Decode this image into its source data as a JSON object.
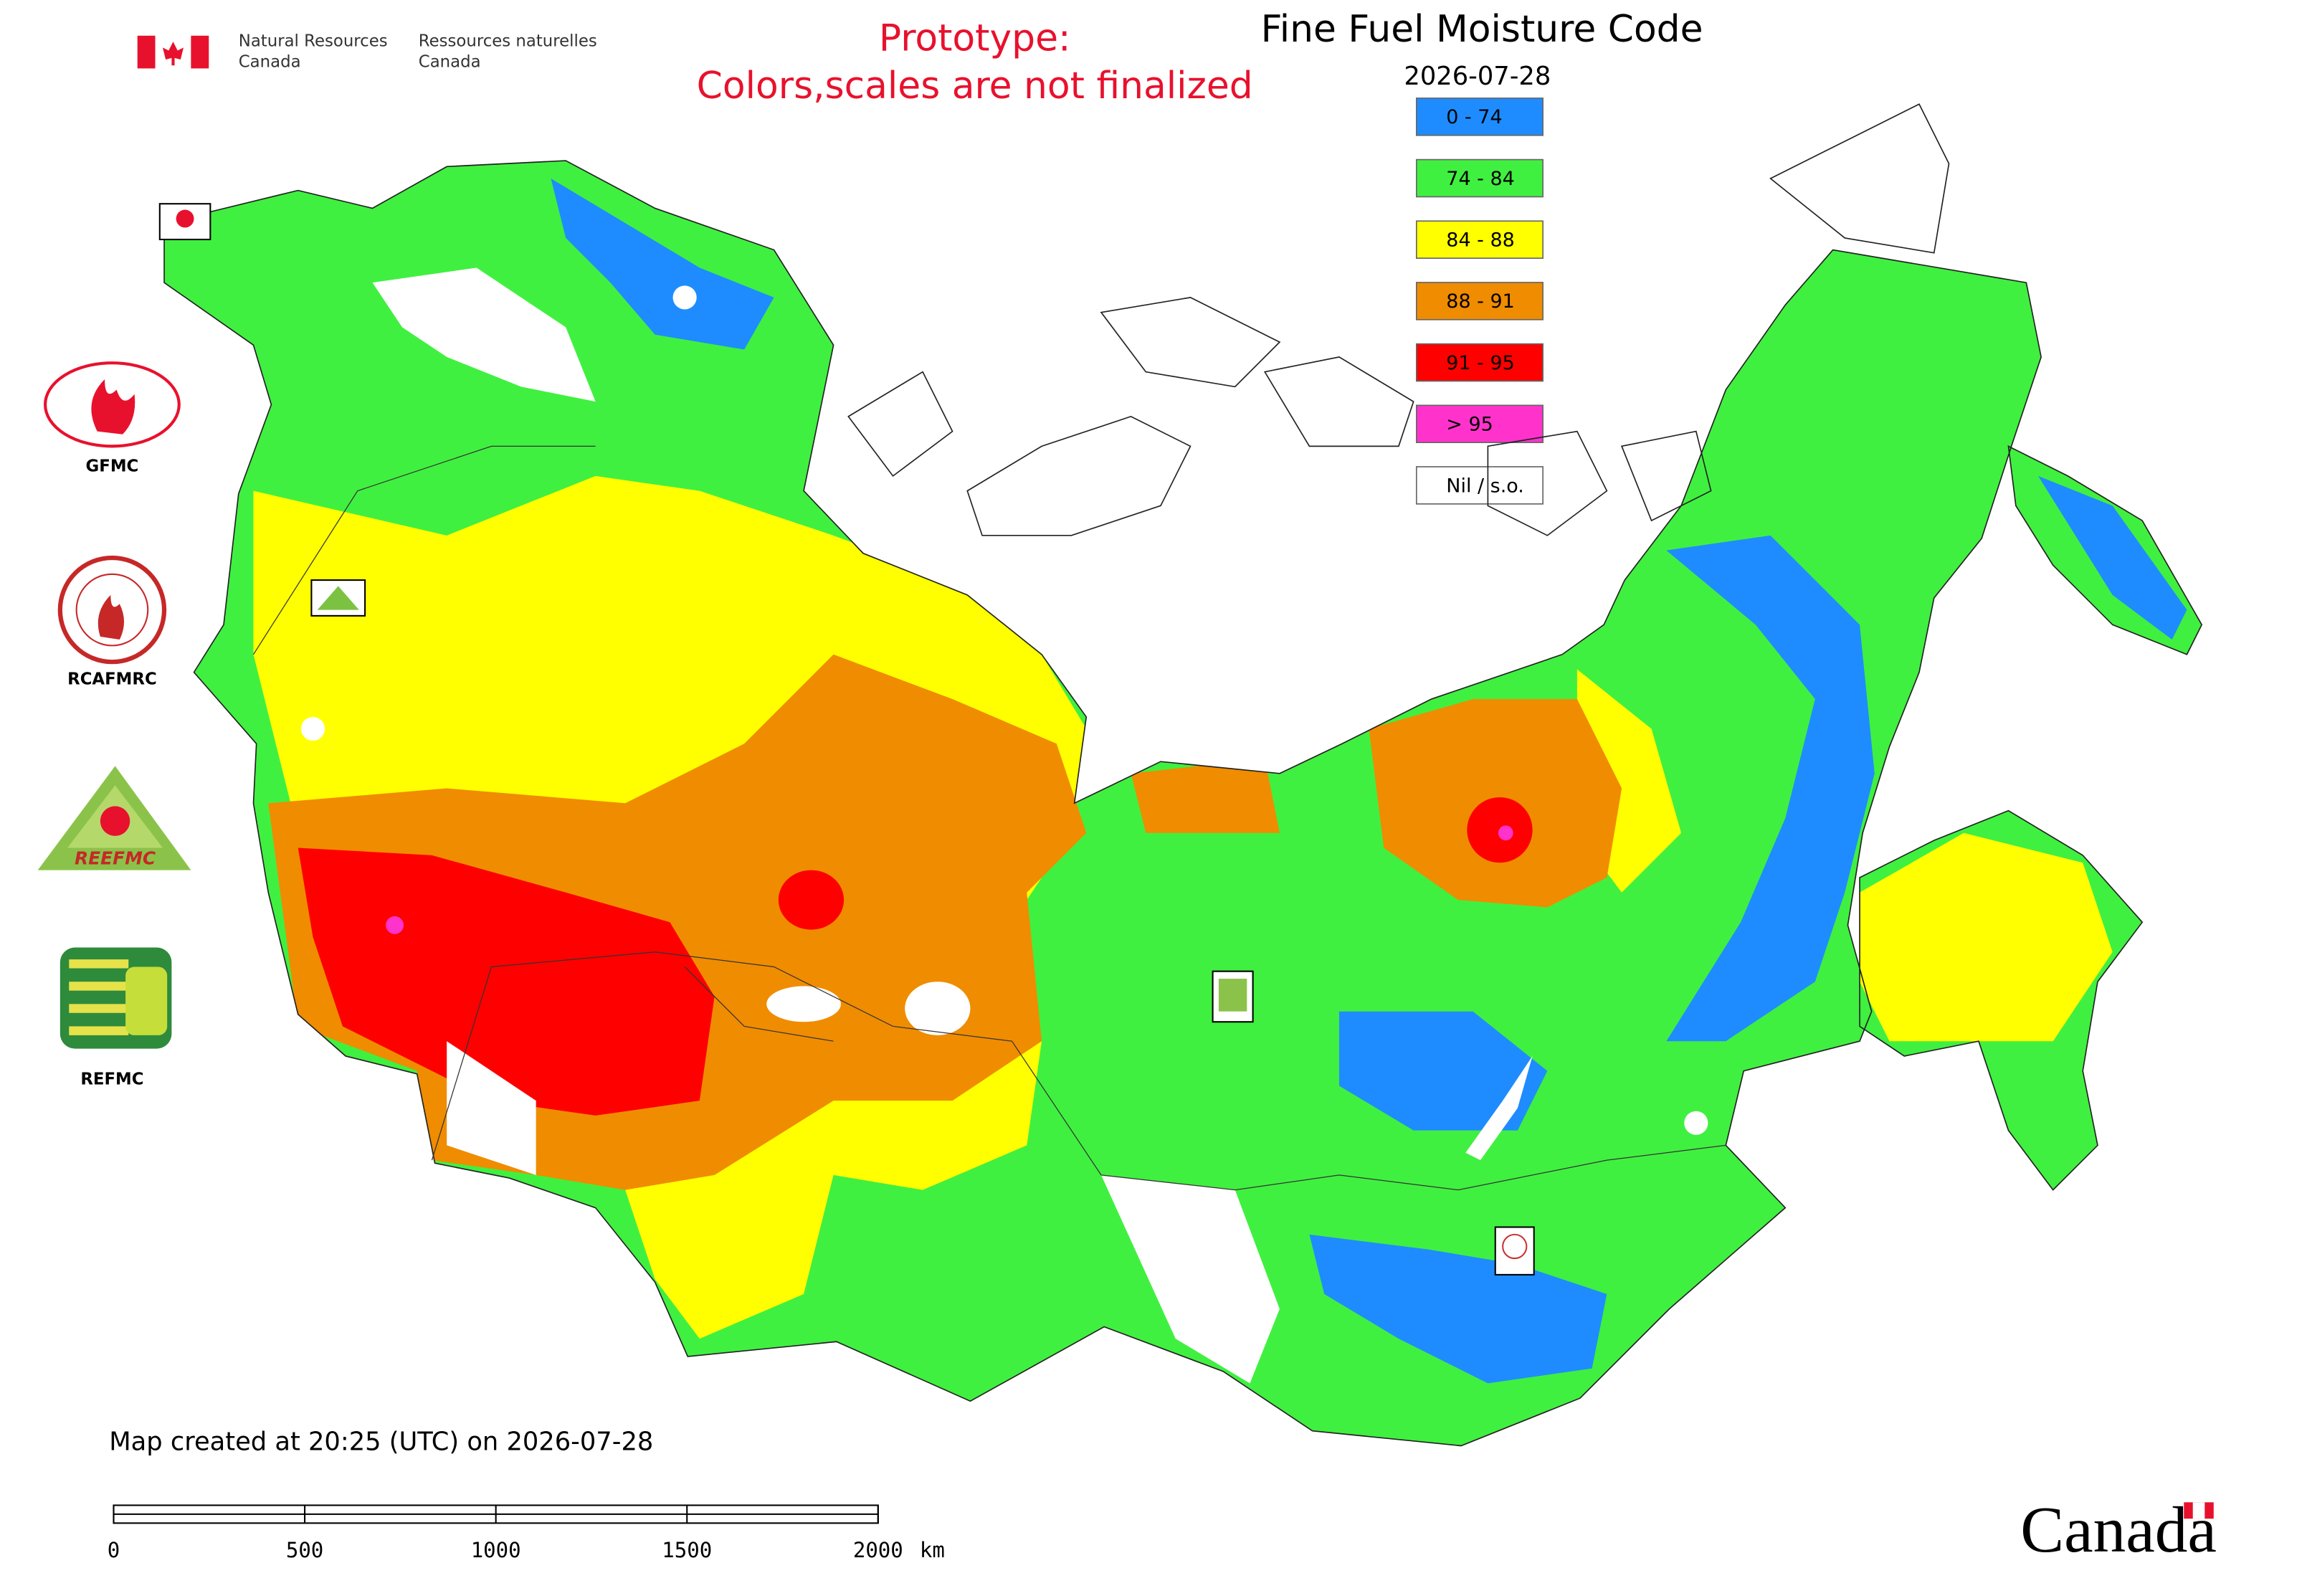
{
  "header": {
    "agency_en": [
      "Natural Resources",
      "Canada"
    ],
    "agency_fr": [
      "Ressources naturelles",
      "Canada"
    ]
  },
  "prototype_note": [
    "Prototype:",
    "Colors,scales are not finalized"
  ],
  "title": "Fine Fuel Moisture Code",
  "date": "2026-07-28",
  "legend": [
    {
      "label": "0 - 74",
      "color": "#1e8cff"
    },
    {
      "label": "74 - 84",
      "color": "#40f040"
    },
    {
      "label": "84 - 88",
      "color": "#ffff00"
    },
    {
      "label": "88 - 91",
      "color": "#f08c00"
    },
    {
      "label": "91 - 95",
      "color": "#ff0000"
    },
    {
      "label": "> 95",
      "color": "#ff33cc"
    },
    {
      "label": "Nil / s.o.",
      "color": "#ffffff"
    }
  ],
  "logos": [
    {
      "label": "GFMC"
    },
    {
      "label": "RCAFMRC"
    },
    {
      "label": "REEFMC"
    },
    {
      "label": "REFMC"
    }
  ],
  "footer": "Map created at 20:25 (UTC) on 2026-07-28",
  "scale_bar": {
    "xlim": [
      0,
      2000
    ],
    "ticks": [
      0,
      500,
      1000,
      1500,
      2000
    ],
    "unit": "km"
  },
  "wordmark": "Canada"
}
